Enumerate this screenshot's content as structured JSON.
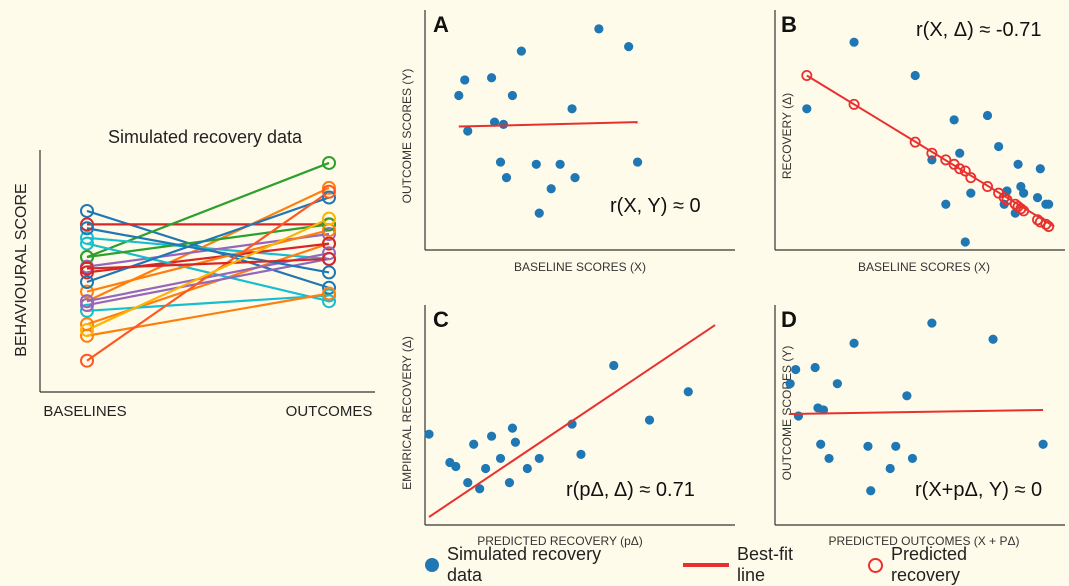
{
  "chart_data": [
    {
      "panel": "left",
      "type": "line",
      "title": "Simulated recovery data",
      "xlabel": "",
      "ylabel": "BEHAVIOURAL SCORE",
      "categories": [
        "BASELINES",
        "OUTCOMES"
      ],
      "ylim": [
        0,
        100
      ],
      "series": [
        {
          "color": "#1f77b4",
          "values": [
            87,
            47
          ]
        },
        {
          "color": "#d62728",
          "values": [
            80,
            80
          ]
        },
        {
          "color": "#2ca02c",
          "values": [
            63,
            112
          ]
        },
        {
          "color": "#ff7f0e",
          "values": [
            40,
            99
          ]
        },
        {
          "color": "#17becf",
          "values": [
            73,
            62
          ]
        },
        {
          "color": "#9467bd",
          "values": [
            58,
            75
          ]
        },
        {
          "color": "#ff7f0e",
          "values": [
            28,
            70
          ]
        },
        {
          "color": "#d62728",
          "values": [
            55,
            70
          ]
        },
        {
          "color": "#17becf",
          "values": [
            70,
            40
          ]
        },
        {
          "color": "#2ca02c",
          "values": [
            63,
            80
          ]
        },
        {
          "color": "#17becf",
          "values": [
            35,
            43
          ]
        },
        {
          "color": "#9467bd",
          "values": [
            38,
            62
          ]
        },
        {
          "color": "#ff7f0e",
          "values": [
            45,
            77
          ]
        },
        {
          "color": "#1f77b4",
          "values": [
            50,
            94
          ]
        },
        {
          "color": "#9467bd",
          "values": [
            40,
            65
          ]
        },
        {
          "color": "#ff7f0e",
          "values": [
            22,
            44
          ]
        },
        {
          "color": "#ff5722",
          "values": [
            9,
            97
          ]
        },
        {
          "color": "#1f77b4",
          "values": [
            78,
            55
          ]
        },
        {
          "color": "#d62728",
          "values": [
            57,
            62
          ]
        },
        {
          "color": "#ffb300",
          "values": [
            25,
            83
          ]
        }
      ]
    },
    {
      "panel": "A",
      "type": "scatter",
      "xlabel": "BASELINE SCORES (X)",
      "ylabel": "OUTCOME SCORES (Y)",
      "annotation": "r(X, Y) ≈ 0",
      "xlim": [
        0,
        100
      ],
      "ylim": [
        0,
        100
      ],
      "points": [
        [
          10,
          66
        ],
        [
          12,
          73
        ],
        [
          13,
          50
        ],
        [
          21,
          74
        ],
        [
          22,
          54
        ],
        [
          24,
          36
        ],
        [
          25,
          53
        ],
        [
          26,
          29
        ],
        [
          28,
          66
        ],
        [
          31,
          86
        ],
        [
          36,
          35
        ],
        [
          37,
          13
        ],
        [
          41,
          24
        ],
        [
          44,
          35
        ],
        [
          48,
          60
        ],
        [
          49,
          29
        ],
        [
          57,
          96
        ],
        [
          67,
          88
        ],
        [
          70,
          36
        ]
      ],
      "fit_line": {
        "x": [
          10,
          70
        ],
        "y": [
          52,
          54
        ]
      }
    },
    {
      "panel": "B",
      "type": "scatter",
      "xlabel": "BASELINE SCORES (X)",
      "ylabel": "RECOVERY (Δ)",
      "annotation": "r(X, Δ) ≈ -0.71",
      "xlim": [
        0,
        100
      ],
      "ylim": [
        0,
        100
      ],
      "points": [
        [
          10,
          60
        ],
        [
          27,
          90
        ],
        [
          49,
          75
        ],
        [
          55,
          37
        ],
        [
          60,
          17
        ],
        [
          63,
          55
        ],
        [
          65,
          40
        ],
        [
          67,
          0
        ],
        [
          69,
          22
        ],
        [
          75,
          57
        ],
        [
          79,
          43
        ],
        [
          81,
          17
        ],
        [
          82,
          23
        ],
        [
          85,
          13
        ],
        [
          86,
          35
        ],
        [
          87,
          25
        ],
        [
          88,
          22
        ],
        [
          93,
          20
        ],
        [
          94,
          33
        ],
        [
          96,
          17
        ],
        [
          97,
          17
        ]
      ],
      "fit_line": {
        "x": [
          10,
          99
        ],
        "y": [
          75,
          7
        ]
      },
      "predicted_points": [
        [
          10,
          75
        ],
        [
          27,
          62
        ],
        [
          49,
          45
        ],
        [
          55,
          40
        ],
        [
          60,
          37
        ],
        [
          63,
          35
        ],
        [
          65,
          33
        ],
        [
          67,
          32
        ],
        [
          69,
          29
        ],
        [
          75,
          25
        ],
        [
          79,
          22
        ],
        [
          81,
          20
        ],
        [
          82,
          19
        ],
        [
          85,
          17
        ],
        [
          86,
          16
        ],
        [
          87,
          15
        ],
        [
          88,
          14
        ],
        [
          93,
          10
        ],
        [
          94,
          9
        ],
        [
          96,
          8
        ],
        [
          97,
          7
        ]
      ]
    },
    {
      "panel": "C",
      "type": "scatter",
      "xlabel": "PREDICTED RECOVERY (pΔ)",
      "ylabel": "EMPIRICAL RECOVERY (Δ)",
      "annotation": "r(pΔ, Δ) ≈ 0.71",
      "xlim": [
        0,
        100
      ],
      "ylim": [
        0,
        100
      ],
      "points": [
        [
          0,
          41
        ],
        [
          7,
          27
        ],
        [
          9,
          25
        ],
        [
          13,
          17
        ],
        [
          15,
          36
        ],
        [
          17,
          14
        ],
        [
          19,
          24
        ],
        [
          21,
          40
        ],
        [
          24,
          29
        ],
        [
          27,
          17
        ],
        [
          28,
          44
        ],
        [
          29,
          37
        ],
        [
          33,
          24
        ],
        [
          37,
          29
        ],
        [
          48,
          46
        ],
        [
          51,
          31
        ],
        [
          62,
          75
        ],
        [
          74,
          48
        ],
        [
          87,
          62
        ]
      ],
      "fit_line": {
        "x": [
          0,
          96
        ],
        "y": [
          0,
          95
        ]
      }
    },
    {
      "panel": "D",
      "type": "scatter",
      "xlabel": "PREDICTED OUTCOMES (X + PΔ)",
      "ylabel": "OUTCOME SCORES (Y)",
      "annotation": "r(X+pΔ, Y) ≈ 0",
      "xlim": [
        0,
        100
      ],
      "ylim": [
        0,
        100
      ],
      "points": [
        [
          4,
          66
        ],
        [
          6,
          73
        ],
        [
          7,
          50
        ],
        [
          13,
          74
        ],
        [
          14,
          54
        ],
        [
          15,
          36
        ],
        [
          16,
          53
        ],
        [
          18,
          29
        ],
        [
          21,
          66
        ],
        [
          27,
          86
        ],
        [
          32,
          35
        ],
        [
          33,
          13
        ],
        [
          40,
          24
        ],
        [
          42,
          35
        ],
        [
          46,
          60
        ],
        [
          48,
          29
        ],
        [
          55,
          96
        ],
        [
          77,
          88
        ],
        [
          95,
          36
        ]
      ],
      "fit_line": {
        "x": [
          4,
          95
        ],
        "y": [
          51,
          53
        ]
      }
    }
  ],
  "panel_letters": [
    "A",
    "B",
    "C",
    "D"
  ],
  "legend": {
    "simulated": "Simulated recovery data",
    "bestfit": "Best-fit line",
    "predicted": "Predicted recovery"
  },
  "colors": {
    "dot": "#1f77b4",
    "fit": "#e8312f",
    "axis": "#333333",
    "background": "#fffbea"
  }
}
